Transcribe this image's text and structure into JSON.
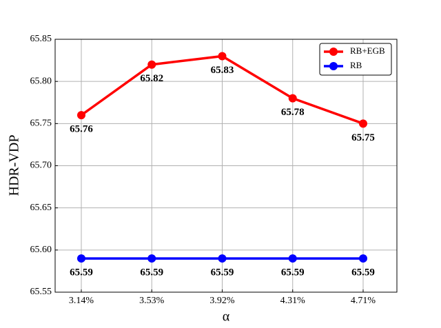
{
  "chart_data": {
    "type": "line",
    "x_label": "α",
    "y_label": "HDR-VDP",
    "categories": [
      "3.14%",
      "3.53%",
      "3.92%",
      "4.31%",
      "4.71%"
    ],
    "series": [
      {
        "name": "RB+EGB",
        "color": "#ff0000",
        "values": [
          65.76,
          65.82,
          65.83,
          65.78,
          65.75
        ]
      },
      {
        "name": "RB",
        "color": "#0000ff",
        "values": [
          65.59,
          65.59,
          65.59,
          65.59,
          65.59
        ]
      }
    ],
    "ylim": [
      65.55,
      65.85
    ],
    "yticks": [
      65.55,
      {
        "value": 65.6,
        "label": "65.60"
      },
      65.65,
      {
        "value": 65.7,
        "label": "65.70"
      },
      65.75,
      {
        "value": 65.8,
        "label": "65.80"
      },
      65.85
    ],
    "grid": true,
    "legend": "upper right"
  }
}
